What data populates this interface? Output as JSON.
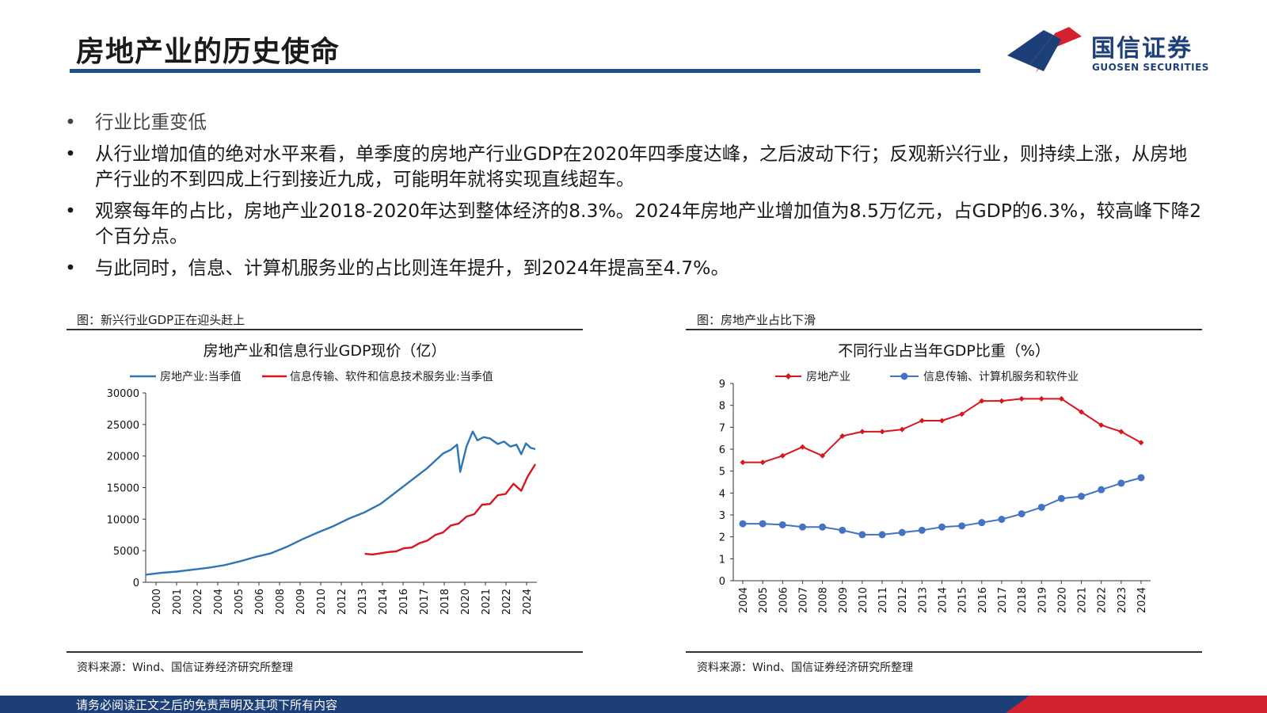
{
  "page": {
    "title": "房地产业的历史使命",
    "logo": {
      "cn": "国信证券",
      "en": "GUOSEN SECURITIES"
    },
    "bullets": [
      "行业比重变低",
      "从行业增加值的绝对水平来看，单季度的房地产行业GDP在2020年四季度达峰，之后波动下行；反观新兴行业，则持续上涨，从房地产行业的不到四成上行到接近九成，可能明年就将实现直线超车。",
      "观察每年的占比，房地产业2018-2020年达到整体经济的8.3%。2024年房地产业增加值为8.5万亿元，占GDP的6.3%，较高峰下降2个百分点。",
      "与此同时，信息、计算机服务业的占比则连年提升，到2024年提高至4.7%。"
    ],
    "bullet_glyph": "•",
    "footer": "请务必阅读正文之后的免责声明及其项下所有内容",
    "colors": {
      "brand_blue": "#1d3f78",
      "brand_red": "#d2222f",
      "series_blue": "#2e75b6",
      "series_red": "#d9161d",
      "series_blue2": "#4472c4"
    }
  },
  "figures": [
    {
      "caption": "图：新兴行业GDP正在迎头赶上",
      "source": "资料来源：Wind、国信证券经济研究所整理"
    },
    {
      "caption": "图：房地产业占比下滑",
      "source": "资料来源：Wind、国信证券经济研究所整理"
    }
  ],
  "chart_data": [
    {
      "type": "line",
      "title": "房地产业和信息行业GDP现价（亿）",
      "ylim": [
        0,
        30000
      ],
      "yticks": [
        "0",
        "5000",
        "10000",
        "15000",
        "20000",
        "25000",
        "30000"
      ],
      "xticks": [
        "2000",
        "2001",
        "2002",
        "2004",
        "2005",
        "2006",
        "2008",
        "2009",
        "2010",
        "2012",
        "2013",
        "2014",
        "2016",
        "2017",
        "2018",
        "2020",
        "2021",
        "2022",
        "2024"
      ],
      "x_range_years": [
        2000,
        2025
      ],
      "legend_position": "top",
      "series": [
        {
          "name": "房地产业:当季值",
          "color": "#2e75b6",
          "points": [
            [
              2000,
              1200
            ],
            [
              2001,
              1500
            ],
            [
              2002,
              1700
            ],
            [
              2003,
              2000
            ],
            [
              2004,
              2300
            ],
            [
              2005,
              2700
            ],
            [
              2006,
              3300
            ],
            [
              2007,
              4000
            ],
            [
              2008,
              4600
            ],
            [
              2009,
              5600
            ],
            [
              2010,
              6800
            ],
            [
              2011,
              7900
            ],
            [
              2012,
              8900
            ],
            [
              2013,
              10100
            ],
            [
              2014,
              11100
            ],
            [
              2015,
              12400
            ],
            [
              2016,
              14300
            ],
            [
              2017,
              16200
            ],
            [
              2018,
              18100
            ],
            [
              2019,
              20400
            ],
            [
              2019.5,
              21000
            ],
            [
              2019.9,
              21800
            ],
            [
              2020.1,
              17500
            ],
            [
              2020.5,
              21500
            ],
            [
              2020.9,
              23900
            ],
            [
              2021.2,
              22500
            ],
            [
              2021.6,
              23000
            ],
            [
              2022.0,
              22800
            ],
            [
              2022.5,
              21900
            ],
            [
              2022.9,
              22300
            ],
            [
              2023.3,
              21500
            ],
            [
              2023.7,
              21800
            ],
            [
              2024.0,
              20300
            ],
            [
              2024.3,
              22000
            ],
            [
              2024.6,
              21300
            ],
            [
              2024.9,
              21100
            ]
          ]
        },
        {
          "name": "信息传输、软件和信息技术服务业:当季值",
          "color": "#d9161d",
          "points": [
            [
              2014.0,
              4500
            ],
            [
              2014.5,
              4400
            ],
            [
              2015.0,
              4600
            ],
            [
              2015.5,
              4800
            ],
            [
              2016.0,
              4900
            ],
            [
              2016.5,
              5400
            ],
            [
              2017.0,
              5500
            ],
            [
              2017.5,
              6200
            ],
            [
              2018.0,
              6600
            ],
            [
              2018.5,
              7500
            ],
            [
              2019.0,
              7900
            ],
            [
              2019.5,
              9000
            ],
            [
              2020.0,
              9300
            ],
            [
              2020.5,
              10400
            ],
            [
              2021.0,
              10800
            ],
            [
              2021.5,
              12300
            ],
            [
              2022.0,
              12400
            ],
            [
              2022.5,
              13800
            ],
            [
              2023.0,
              14000
            ],
            [
              2023.5,
              15600
            ],
            [
              2024.0,
              14500
            ],
            [
              2024.4,
              16700
            ],
            [
              2024.9,
              18700
            ]
          ]
        }
      ]
    },
    {
      "type": "line",
      "title": "不同行业占当年GDP比重（%）",
      "ylim": [
        0,
        9
      ],
      "yticks": [
        "0",
        "1",
        "2",
        "3",
        "4",
        "5",
        "6",
        "7",
        "8",
        "9"
      ],
      "categories": [
        "2004",
        "2005",
        "2006",
        "2007",
        "2008",
        "2009",
        "2010",
        "2011",
        "2012",
        "2013",
        "2014",
        "2015",
        "2016",
        "2017",
        "2018",
        "2019",
        "2020",
        "2021",
        "2022",
        "2023",
        "2024"
      ],
      "legend_position": "top",
      "series": [
        {
          "name": "房地产业",
          "color": "#d9161d",
          "marker": "diamond",
          "values": [
            5.4,
            5.4,
            5.7,
            6.1,
            5.7,
            6.6,
            6.8,
            6.8,
            6.9,
            7.3,
            7.3,
            7.6,
            8.2,
            8.2,
            8.3,
            8.3,
            8.3,
            7.7,
            7.1,
            6.8,
            6.3
          ]
        },
        {
          "name": "信息传输、计算机服务和软件业",
          "color": "#4472c4",
          "marker": "circle",
          "values": [
            2.6,
            2.6,
            2.55,
            2.45,
            2.45,
            2.3,
            2.1,
            2.1,
            2.2,
            2.3,
            2.45,
            2.5,
            2.65,
            2.8,
            3.05,
            3.35,
            3.75,
            3.85,
            4.15,
            4.45,
            4.7
          ]
        }
      ]
    }
  ]
}
